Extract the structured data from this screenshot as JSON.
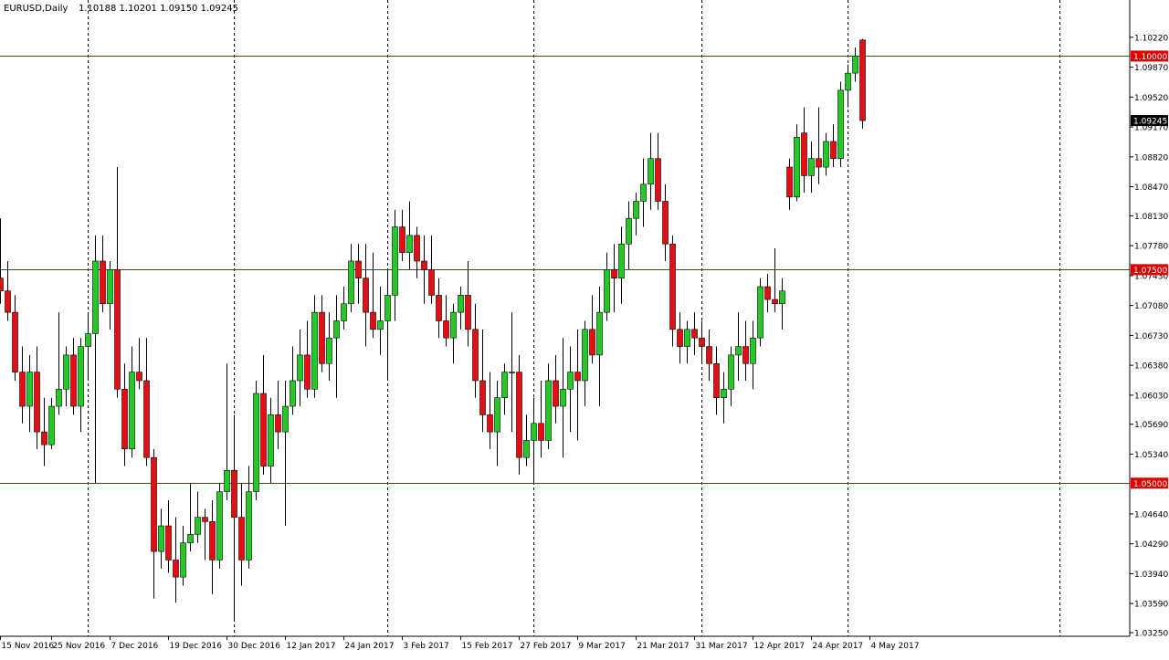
{
  "header": {
    "symbol": "EURUSD,Daily",
    "ohlc": "1.10188 1.10201 1.09150 1.09245"
  },
  "colors": {
    "up": "#22cc22",
    "down": "#dd1111",
    "wick": "#000000",
    "hline": "#dd0000",
    "label_bg": "#dd0000",
    "current_bg": "#000000"
  },
  "chart_data": {
    "type": "candlestick",
    "instrument": "EURUSD",
    "timeframe": "Daily",
    "ylim": [
      1.0325,
      1.104
    ],
    "y_ticks": [
      "1.10220",
      "1.09870",
      "1.09520",
      "1.09170",
      "1.08820",
      "1.08470",
      "1.08130",
      "1.07780",
      "1.07430",
      "1.07080",
      "1.06730",
      "1.06380",
      "1.06030",
      "1.05690",
      "1.05340",
      "1.04640",
      "1.04290",
      "1.03940",
      "1.03590",
      "1.03250"
    ],
    "x_ticks": [
      {
        "label": "15 Nov 2016",
        "bar": 0
      },
      {
        "label": "25 Nov 2016",
        "bar": 7
      },
      {
        "label": "7 Dec 2016",
        "bar": 15
      },
      {
        "label": "19 Dec 2016",
        "bar": 23
      },
      {
        "label": "30 Dec 2016",
        "bar": 31
      },
      {
        "label": "12 Jan 2017",
        "bar": 39
      },
      {
        "label": "24 Jan 2017",
        "bar": 47
      },
      {
        "label": "3 Feb 2017",
        "bar": 55
      },
      {
        "label": "15 Feb 2017",
        "bar": 63
      },
      {
        "label": "27 Feb 2017",
        "bar": 71
      },
      {
        "label": "9 Mar 2017",
        "bar": 79
      },
      {
        "label": "21 Mar 2017",
        "bar": 87
      },
      {
        "label": "31 Mar 2017",
        "bar": 95
      },
      {
        "label": "12 Apr 2017",
        "bar": 103
      },
      {
        "label": "24 Apr 2017",
        "bar": 111
      },
      {
        "label": "4 May 2017",
        "bar": 119
      }
    ],
    "vertical_grid_bars": [
      12,
      32,
      53,
      73,
      96,
      116,
      145
    ],
    "horizontal_lines": [
      {
        "value": 1.1,
        "label": "1.10000"
      },
      {
        "value": 1.075,
        "label": "1.07500"
      },
      {
        "value": 1.05,
        "label": "1.05000"
      }
    ],
    "current_price": {
      "value": 1.09245,
      "label": "1.09245"
    },
    "candles": [
      {
        "o": 1.074,
        "h": 1.081,
        "l": 1.071,
        "c": 1.0725
      },
      {
        "o": 1.0725,
        "h": 1.076,
        "l": 1.069,
        "c": 1.07
      },
      {
        "o": 1.07,
        "h": 1.072,
        "l": 1.062,
        "c": 1.063
      },
      {
        "o": 1.063,
        "h": 1.066,
        "l": 1.057,
        "c": 1.059
      },
      {
        "o": 1.059,
        "h": 1.065,
        "l": 1.056,
        "c": 1.063
      },
      {
        "o": 1.063,
        "h": 1.066,
        "l": 1.054,
        "c": 1.056
      },
      {
        "o": 1.056,
        "h": 1.06,
        "l": 1.052,
        "c": 1.0545
      },
      {
        "o": 1.0545,
        "h": 1.06,
        "l": 1.054,
        "c": 1.059
      },
      {
        "o": 1.059,
        "h": 1.07,
        "l": 1.058,
        "c": 1.061
      },
      {
        "o": 1.061,
        "h": 1.066,
        "l": 1.059,
        "c": 1.065
      },
      {
        "o": 1.065,
        "h": 1.067,
        "l": 1.058,
        "c": 1.059
      },
      {
        "o": 1.059,
        "h": 1.067,
        "l": 1.056,
        "c": 1.066
      },
      {
        "o": 1.066,
        "h": 1.07,
        "l": 1.062,
        "c": 1.0675
      },
      {
        "o": 1.0675,
        "h": 1.079,
        "l": 1.05,
        "c": 1.076
      },
      {
        "o": 1.076,
        "h": 1.079,
        "l": 1.07,
        "c": 1.071
      },
      {
        "o": 1.071,
        "h": 1.076,
        "l": 1.068,
        "c": 1.075
      },
      {
        "o": 1.075,
        "h": 1.087,
        "l": 1.06,
        "c": 1.061
      },
      {
        "o": 1.061,
        "h": 1.064,
        "l": 1.052,
        "c": 1.054
      },
      {
        "o": 1.054,
        "h": 1.066,
        "l": 1.053,
        "c": 1.063
      },
      {
        "o": 1.063,
        "h": 1.067,
        "l": 1.061,
        "c": 1.062
      },
      {
        "o": 1.062,
        "h": 1.067,
        "l": 1.052,
        "c": 1.053
      },
      {
        "o": 1.053,
        "h": 1.054,
        "l": 1.0365,
        "c": 1.042
      },
      {
        "o": 1.042,
        "h": 1.047,
        "l": 1.04,
        "c": 1.045
      },
      {
        "o": 1.045,
        "h": 1.048,
        "l": 1.0395,
        "c": 1.041
      },
      {
        "o": 1.041,
        "h": 1.046,
        "l": 1.036,
        "c": 1.039
      },
      {
        "o": 1.039,
        "h": 1.045,
        "l": 1.038,
        "c": 1.043
      },
      {
        "o": 1.043,
        "h": 1.05,
        "l": 1.042,
        "c": 1.044
      },
      {
        "o": 1.044,
        "h": 1.049,
        "l": 1.043,
        "c": 1.046
      },
      {
        "o": 1.046,
        "h": 1.047,
        "l": 1.041,
        "c": 1.0455
      },
      {
        "o": 1.0455,
        "h": 1.048,
        "l": 1.037,
        "c": 1.041
      },
      {
        "o": 1.041,
        "h": 1.05,
        "l": 1.04,
        "c": 1.049
      },
      {
        "o": 1.049,
        "h": 1.064,
        "l": 1.048,
        "c": 1.0515
      },
      {
        "o": 1.0515,
        "h": 1.058,
        "l": 1.034,
        "c": 1.046
      },
      {
        "o": 1.046,
        "h": 1.05,
        "l": 1.038,
        "c": 1.041
      },
      {
        "o": 1.041,
        "h": 1.052,
        "l": 1.04,
        "c": 1.049
      },
      {
        "o": 1.049,
        "h": 1.062,
        "l": 1.048,
        "c": 1.0605
      },
      {
        "o": 1.0605,
        "h": 1.065,
        "l": 1.051,
        "c": 1.052
      },
      {
        "o": 1.052,
        "h": 1.06,
        "l": 1.05,
        "c": 1.058
      },
      {
        "o": 1.058,
        "h": 1.062,
        "l": 1.054,
        "c": 1.056
      },
      {
        "o": 1.056,
        "h": 1.062,
        "l": 1.045,
        "c": 1.059
      },
      {
        "o": 1.059,
        "h": 1.066,
        "l": 1.058,
        "c": 1.062
      },
      {
        "o": 1.062,
        "h": 1.068,
        "l": 1.059,
        "c": 1.065
      },
      {
        "o": 1.065,
        "h": 1.069,
        "l": 1.06,
        "c": 1.061
      },
      {
        "o": 1.061,
        "h": 1.072,
        "l": 1.06,
        "c": 1.07
      },
      {
        "o": 1.07,
        "h": 1.072,
        "l": 1.063,
        "c": 1.064
      },
      {
        "o": 1.064,
        "h": 1.07,
        "l": 1.062,
        "c": 1.067
      },
      {
        "o": 1.067,
        "h": 1.072,
        "l": 1.06,
        "c": 1.069
      },
      {
        "o": 1.069,
        "h": 1.073,
        "l": 1.068,
        "c": 1.071
      },
      {
        "o": 1.071,
        "h": 1.078,
        "l": 1.07,
        "c": 1.076
      },
      {
        "o": 1.076,
        "h": 1.078,
        "l": 1.071,
        "c": 1.074
      },
      {
        "o": 1.074,
        "h": 1.078,
        "l": 1.066,
        "c": 1.07
      },
      {
        "o": 1.07,
        "h": 1.077,
        "l": 1.067,
        "c": 1.068
      },
      {
        "o": 1.068,
        "h": 1.073,
        "l": 1.065,
        "c": 1.069
      },
      {
        "o": 1.069,
        "h": 1.075,
        "l": 1.062,
        "c": 1.072
      },
      {
        "o": 1.072,
        "h": 1.082,
        "l": 1.069,
        "c": 1.08
      },
      {
        "o": 1.08,
        "h": 1.082,
        "l": 1.076,
        "c": 1.077
      },
      {
        "o": 1.077,
        "h": 1.083,
        "l": 1.075,
        "c": 1.079
      },
      {
        "o": 1.079,
        "h": 1.08,
        "l": 1.074,
        "c": 1.076
      },
      {
        "o": 1.076,
        "h": 1.079,
        "l": 1.071,
        "c": 1.075
      },
      {
        "o": 1.075,
        "h": 1.079,
        "l": 1.071,
        "c": 1.072
      },
      {
        "o": 1.072,
        "h": 1.074,
        "l": 1.067,
        "c": 1.069
      },
      {
        "o": 1.069,
        "h": 1.072,
        "l": 1.066,
        "c": 1.067
      },
      {
        "o": 1.067,
        "h": 1.071,
        "l": 1.064,
        "c": 1.07
      },
      {
        "o": 1.07,
        "h": 1.073,
        "l": 1.068,
        "c": 1.072
      },
      {
        "o": 1.072,
        "h": 1.076,
        "l": 1.066,
        "c": 1.068
      },
      {
        "o": 1.068,
        "h": 1.071,
        "l": 1.06,
        "c": 1.062
      },
      {
        "o": 1.062,
        "h": 1.068,
        "l": 1.056,
        "c": 1.058
      },
      {
        "o": 1.058,
        "h": 1.063,
        "l": 1.054,
        "c": 1.056
      },
      {
        "o": 1.056,
        "h": 1.062,
        "l": 1.052,
        "c": 1.06
      },
      {
        "o": 1.06,
        "h": 1.064,
        "l": 1.058,
        "c": 1.063
      },
      {
        "o": 1.063,
        "h": 1.07,
        "l": 1.056,
        "c": 1.063
      },
      {
        "o": 1.063,
        "h": 1.065,
        "l": 1.051,
        "c": 1.053
      },
      {
        "o": 1.053,
        "h": 1.058,
        "l": 1.052,
        "c": 1.055
      },
      {
        "o": 1.055,
        "h": 1.06,
        "l": 1.05,
        "c": 1.057
      },
      {
        "o": 1.057,
        "h": 1.062,
        "l": 1.053,
        "c": 1.055
      },
      {
        "o": 1.055,
        "h": 1.064,
        "l": 1.054,
        "c": 1.062
      },
      {
        "o": 1.062,
        "h": 1.065,
        "l": 1.057,
        "c": 1.059
      },
      {
        "o": 1.059,
        "h": 1.067,
        "l": 1.053,
        "c": 1.061
      },
      {
        "o": 1.061,
        "h": 1.066,
        "l": 1.056,
        "c": 1.063
      },
      {
        "o": 1.063,
        "h": 1.068,
        "l": 1.055,
        "c": 1.062
      },
      {
        "o": 1.062,
        "h": 1.069,
        "l": 1.059,
        "c": 1.068
      },
      {
        "o": 1.068,
        "h": 1.072,
        "l": 1.064,
        "c": 1.065
      },
      {
        "o": 1.065,
        "h": 1.073,
        "l": 1.059,
        "c": 1.07
      },
      {
        "o": 1.07,
        "h": 1.077,
        "l": 1.069,
        "c": 1.075
      },
      {
        "o": 1.075,
        "h": 1.078,
        "l": 1.07,
        "c": 1.074
      },
      {
        "o": 1.074,
        "h": 1.08,
        "l": 1.071,
        "c": 1.078
      },
      {
        "o": 1.078,
        "h": 1.083,
        "l": 1.075,
        "c": 1.081
      },
      {
        "o": 1.081,
        "h": 1.084,
        "l": 1.079,
        "c": 1.083
      },
      {
        "o": 1.083,
        "h": 1.088,
        "l": 1.08,
        "c": 1.085
      },
      {
        "o": 1.085,
        "h": 1.091,
        "l": 1.082,
        "c": 1.088
      },
      {
        "o": 1.088,
        "h": 1.091,
        "l": 1.082,
        "c": 1.083
      },
      {
        "o": 1.083,
        "h": 1.085,
        "l": 1.076,
        "c": 1.078
      },
      {
        "o": 1.078,
        "h": 1.079,
        "l": 1.066,
        "c": 1.068
      },
      {
        "o": 1.068,
        "h": 1.07,
        "l": 1.064,
        "c": 1.066
      },
      {
        "o": 1.066,
        "h": 1.069,
        "l": 1.064,
        "c": 1.068
      },
      {
        "o": 1.068,
        "h": 1.07,
        "l": 1.065,
        "c": 1.067
      },
      {
        "o": 1.067,
        "h": 1.069,
        "l": 1.064,
        "c": 1.066
      },
      {
        "o": 1.066,
        "h": 1.068,
        "l": 1.062,
        "c": 1.064
      },
      {
        "o": 1.064,
        "h": 1.066,
        "l": 1.058,
        "c": 1.06
      },
      {
        "o": 1.06,
        "h": 1.063,
        "l": 1.057,
        "c": 1.061
      },
      {
        "o": 1.061,
        "h": 1.066,
        "l": 1.059,
        "c": 1.065
      },
      {
        "o": 1.065,
        "h": 1.07,
        "l": 1.062,
        "c": 1.066
      },
      {
        "o": 1.066,
        "h": 1.069,
        "l": 1.062,
        "c": 1.064
      },
      {
        "o": 1.064,
        "h": 1.069,
        "l": 1.061,
        "c": 1.067
      },
      {
        "o": 1.067,
        "h": 1.074,
        "l": 1.066,
        "c": 1.073
      },
      {
        "o": 1.073,
        "h": 1.0745,
        "l": 1.07,
        "c": 1.0715
      },
      {
        "o": 1.0715,
        "h": 1.0775,
        "l": 1.07,
        "c": 1.071
      },
      {
        "o": 1.071,
        "h": 1.074,
        "l": 1.068,
        "c": 1.0725
      },
      {
        "o": 1.087,
        "h": 1.088,
        "l": 1.082,
        "c": 1.0835
      },
      {
        "o": 1.0835,
        "h": 1.092,
        "l": 1.083,
        "c": 1.0905
      },
      {
        "o": 1.091,
        "h": 1.094,
        "l": 1.084,
        "c": 1.086
      },
      {
        "o": 1.086,
        "h": 1.09,
        "l": 1.084,
        "c": 1.088
      },
      {
        "o": 1.088,
        "h": 1.094,
        "l": 1.085,
        "c": 1.087
      },
      {
        "o": 1.087,
        "h": 1.091,
        "l": 1.086,
        "c": 1.09
      },
      {
        "o": 1.09,
        "h": 1.092,
        "l": 1.087,
        "c": 1.088
      },
      {
        "o": 1.088,
        "h": 1.097,
        "l": 1.087,
        "c": 1.096
      },
      {
        "o": 1.096,
        "h": 1.099,
        "l": 1.094,
        "c": 1.098
      },
      {
        "o": 1.098,
        "h": 1.101,
        "l": 1.097,
        "c": 1.1
      },
      {
        "o": 1.10188,
        "h": 1.10201,
        "l": 1.0915,
        "c": 1.09245
      }
    ]
  }
}
